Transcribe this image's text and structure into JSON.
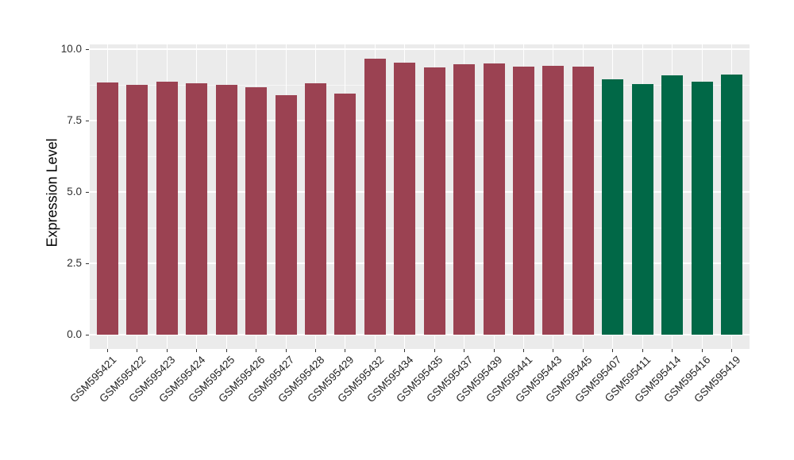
{
  "chart_data": {
    "type": "bar",
    "title": "",
    "xlabel": "",
    "ylabel": "Expression Level",
    "categories": [
      "GSM595421",
      "GSM595422",
      "GSM595423",
      "GSM595424",
      "GSM595425",
      "GSM595426",
      "GSM595427",
      "GSM595428",
      "GSM595429",
      "GSM595432",
      "GSM595434",
      "GSM595435",
      "GSM595437",
      "GSM595439",
      "GSM595441",
      "GSM595443",
      "GSM595445",
      "GSM595407",
      "GSM595411",
      "GSM595414",
      "GSM595416",
      "GSM595419"
    ],
    "values": [
      8.84,
      8.74,
      8.86,
      8.8,
      8.74,
      8.66,
      8.4,
      8.81,
      8.44,
      9.67,
      9.53,
      9.35,
      9.46,
      9.5,
      9.4,
      9.42,
      9.39,
      8.95,
      8.79,
      9.07,
      8.85,
      9.12
    ],
    "groups": [
      0,
      0,
      0,
      0,
      0,
      0,
      0,
      0,
      0,
      0,
      0,
      0,
      0,
      0,
      0,
      0,
      0,
      1,
      1,
      1,
      1,
      1
    ],
    "group_colors": [
      "#9B4252",
      "#016847"
    ],
    "y_ticks": [
      0.0,
      2.5,
      5.0,
      7.5,
      10.0
    ],
    "y_tick_labels": [
      "0.0",
      "2.5",
      "5.0",
      "7.5",
      "10.0"
    ],
    "y_minor_ticks": [
      1.25,
      3.75,
      6.25,
      8.75
    ],
    "ylim": [
      0,
      10.17
    ],
    "grid": "white major and minor horizontal lines, white vertical lines at bar centers, on gray panel",
    "legend": "none",
    "styling": {
      "panel_background": "#EBEBEB",
      "grid_color": "#FFFFFF",
      "tick_color": "#333333",
      "axis_text_color": "#303030",
      "x_label_rotation_deg": 45,
      "figure_background": "#FFFFFF"
    }
  }
}
